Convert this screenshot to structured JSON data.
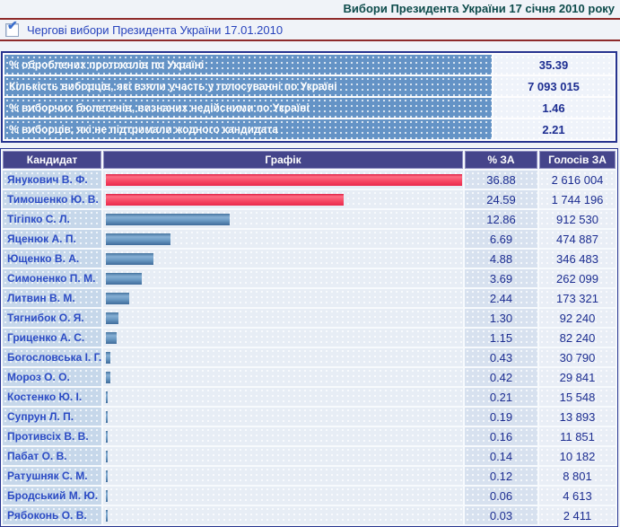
{
  "page": {
    "title": "Вибори Президента України 17 січня 2010 року",
    "election_label": "Чергові вибори Президента України 17.01.2010"
  },
  "summary": {
    "rows": [
      {
        "label": "% оброблених протоколів по Україні",
        "value": "35.39"
      },
      {
        "label": "Кількість виборців, які взяли участь у голосуванні по Україні",
        "value": "7 093 015"
      },
      {
        "label": "% виборчих бюлетенів, визнаних недійсними по Україні",
        "value": "1.46"
      },
      {
        "label": "% виборців, які не підтримали жодного кандидата",
        "value": "2.21"
      }
    ]
  },
  "results": {
    "columns": [
      "Кандидат",
      "Графік",
      "% ЗА",
      "Голосів ЗА"
    ],
    "max_percent": 36.88,
    "rows": [
      {
        "candidate": "Янукович В. Ф.",
        "percent": 36.88,
        "percent_label": "36.88",
        "votes": "2 616 004",
        "bar": "red"
      },
      {
        "candidate": "Тимошенко Ю. В.",
        "percent": 24.59,
        "percent_label": "24.59",
        "votes": "1 744 196",
        "bar": "red"
      },
      {
        "candidate": "Тігіпко С. Л.",
        "percent": 12.86,
        "percent_label": "12.86",
        "votes": "912 530",
        "bar": "blue"
      },
      {
        "candidate": "Яценюк А. П.",
        "percent": 6.69,
        "percent_label": "6.69",
        "votes": "474 887",
        "bar": "blue"
      },
      {
        "candidate": "Ющенко В. А.",
        "percent": 4.88,
        "percent_label": "4.88",
        "votes": "346 483",
        "bar": "blue"
      },
      {
        "candidate": "Симоненко П. М.",
        "percent": 3.69,
        "percent_label": "3.69",
        "votes": "262 099",
        "bar": "blue"
      },
      {
        "candidate": "Литвин В. М.",
        "percent": 2.44,
        "percent_label": "2.44",
        "votes": "173 321",
        "bar": "blue"
      },
      {
        "candidate": "Тягнибок О. Я.",
        "percent": 1.3,
        "percent_label": "1.30",
        "votes": "92 240",
        "bar": "blue"
      },
      {
        "candidate": "Гриценко А. С.",
        "percent": 1.15,
        "percent_label": "1.15",
        "votes": "82 240",
        "bar": "blue"
      },
      {
        "candidate": "Богословська І. Г.",
        "percent": 0.43,
        "percent_label": "0.43",
        "votes": "30 790",
        "bar": "blue"
      },
      {
        "candidate": "Мороз О. О.",
        "percent": 0.42,
        "percent_label": "0.42",
        "votes": "29 841",
        "bar": "blue"
      },
      {
        "candidate": "Костенко Ю. І.",
        "percent": 0.21,
        "percent_label": "0.21",
        "votes": "15 548",
        "bar": "blue"
      },
      {
        "candidate": "Супрун Л. П.",
        "percent": 0.19,
        "percent_label": "0.19",
        "votes": "13 893",
        "bar": "blue"
      },
      {
        "candidate": "Противсіх В. В.",
        "percent": 0.16,
        "percent_label": "0.16",
        "votes": "11 851",
        "bar": "blue"
      },
      {
        "candidate": "Пабат О. В.",
        "percent": 0.14,
        "percent_label": "0.14",
        "votes": "10 182",
        "bar": "blue"
      },
      {
        "candidate": "Ратушняк С. М.",
        "percent": 0.12,
        "percent_label": "0.12",
        "votes": "8 801",
        "bar": "blue"
      },
      {
        "candidate": "Бродський М. Ю.",
        "percent": 0.06,
        "percent_label": "0.06",
        "votes": "4 613",
        "bar": "blue"
      },
      {
        "candidate": "Рябоконь О. В.",
        "percent": 0.03,
        "percent_label": "0.03",
        "votes": "2 411",
        "bar": "blue"
      }
    ]
  },
  "colors": {
    "maroon": "#8e2a2a",
    "header_bg": "#45458b",
    "navy": "#1c2d91",
    "cand_blue": "#2b4bc4",
    "teal": "#0d4b4b",
    "link_blue": "#2743bd",
    "sum_label_bg": "#6493c6",
    "table_border": "#26338f",
    "bar_red": "#f64763",
    "bar_blue": "#6e9dc6"
  }
}
